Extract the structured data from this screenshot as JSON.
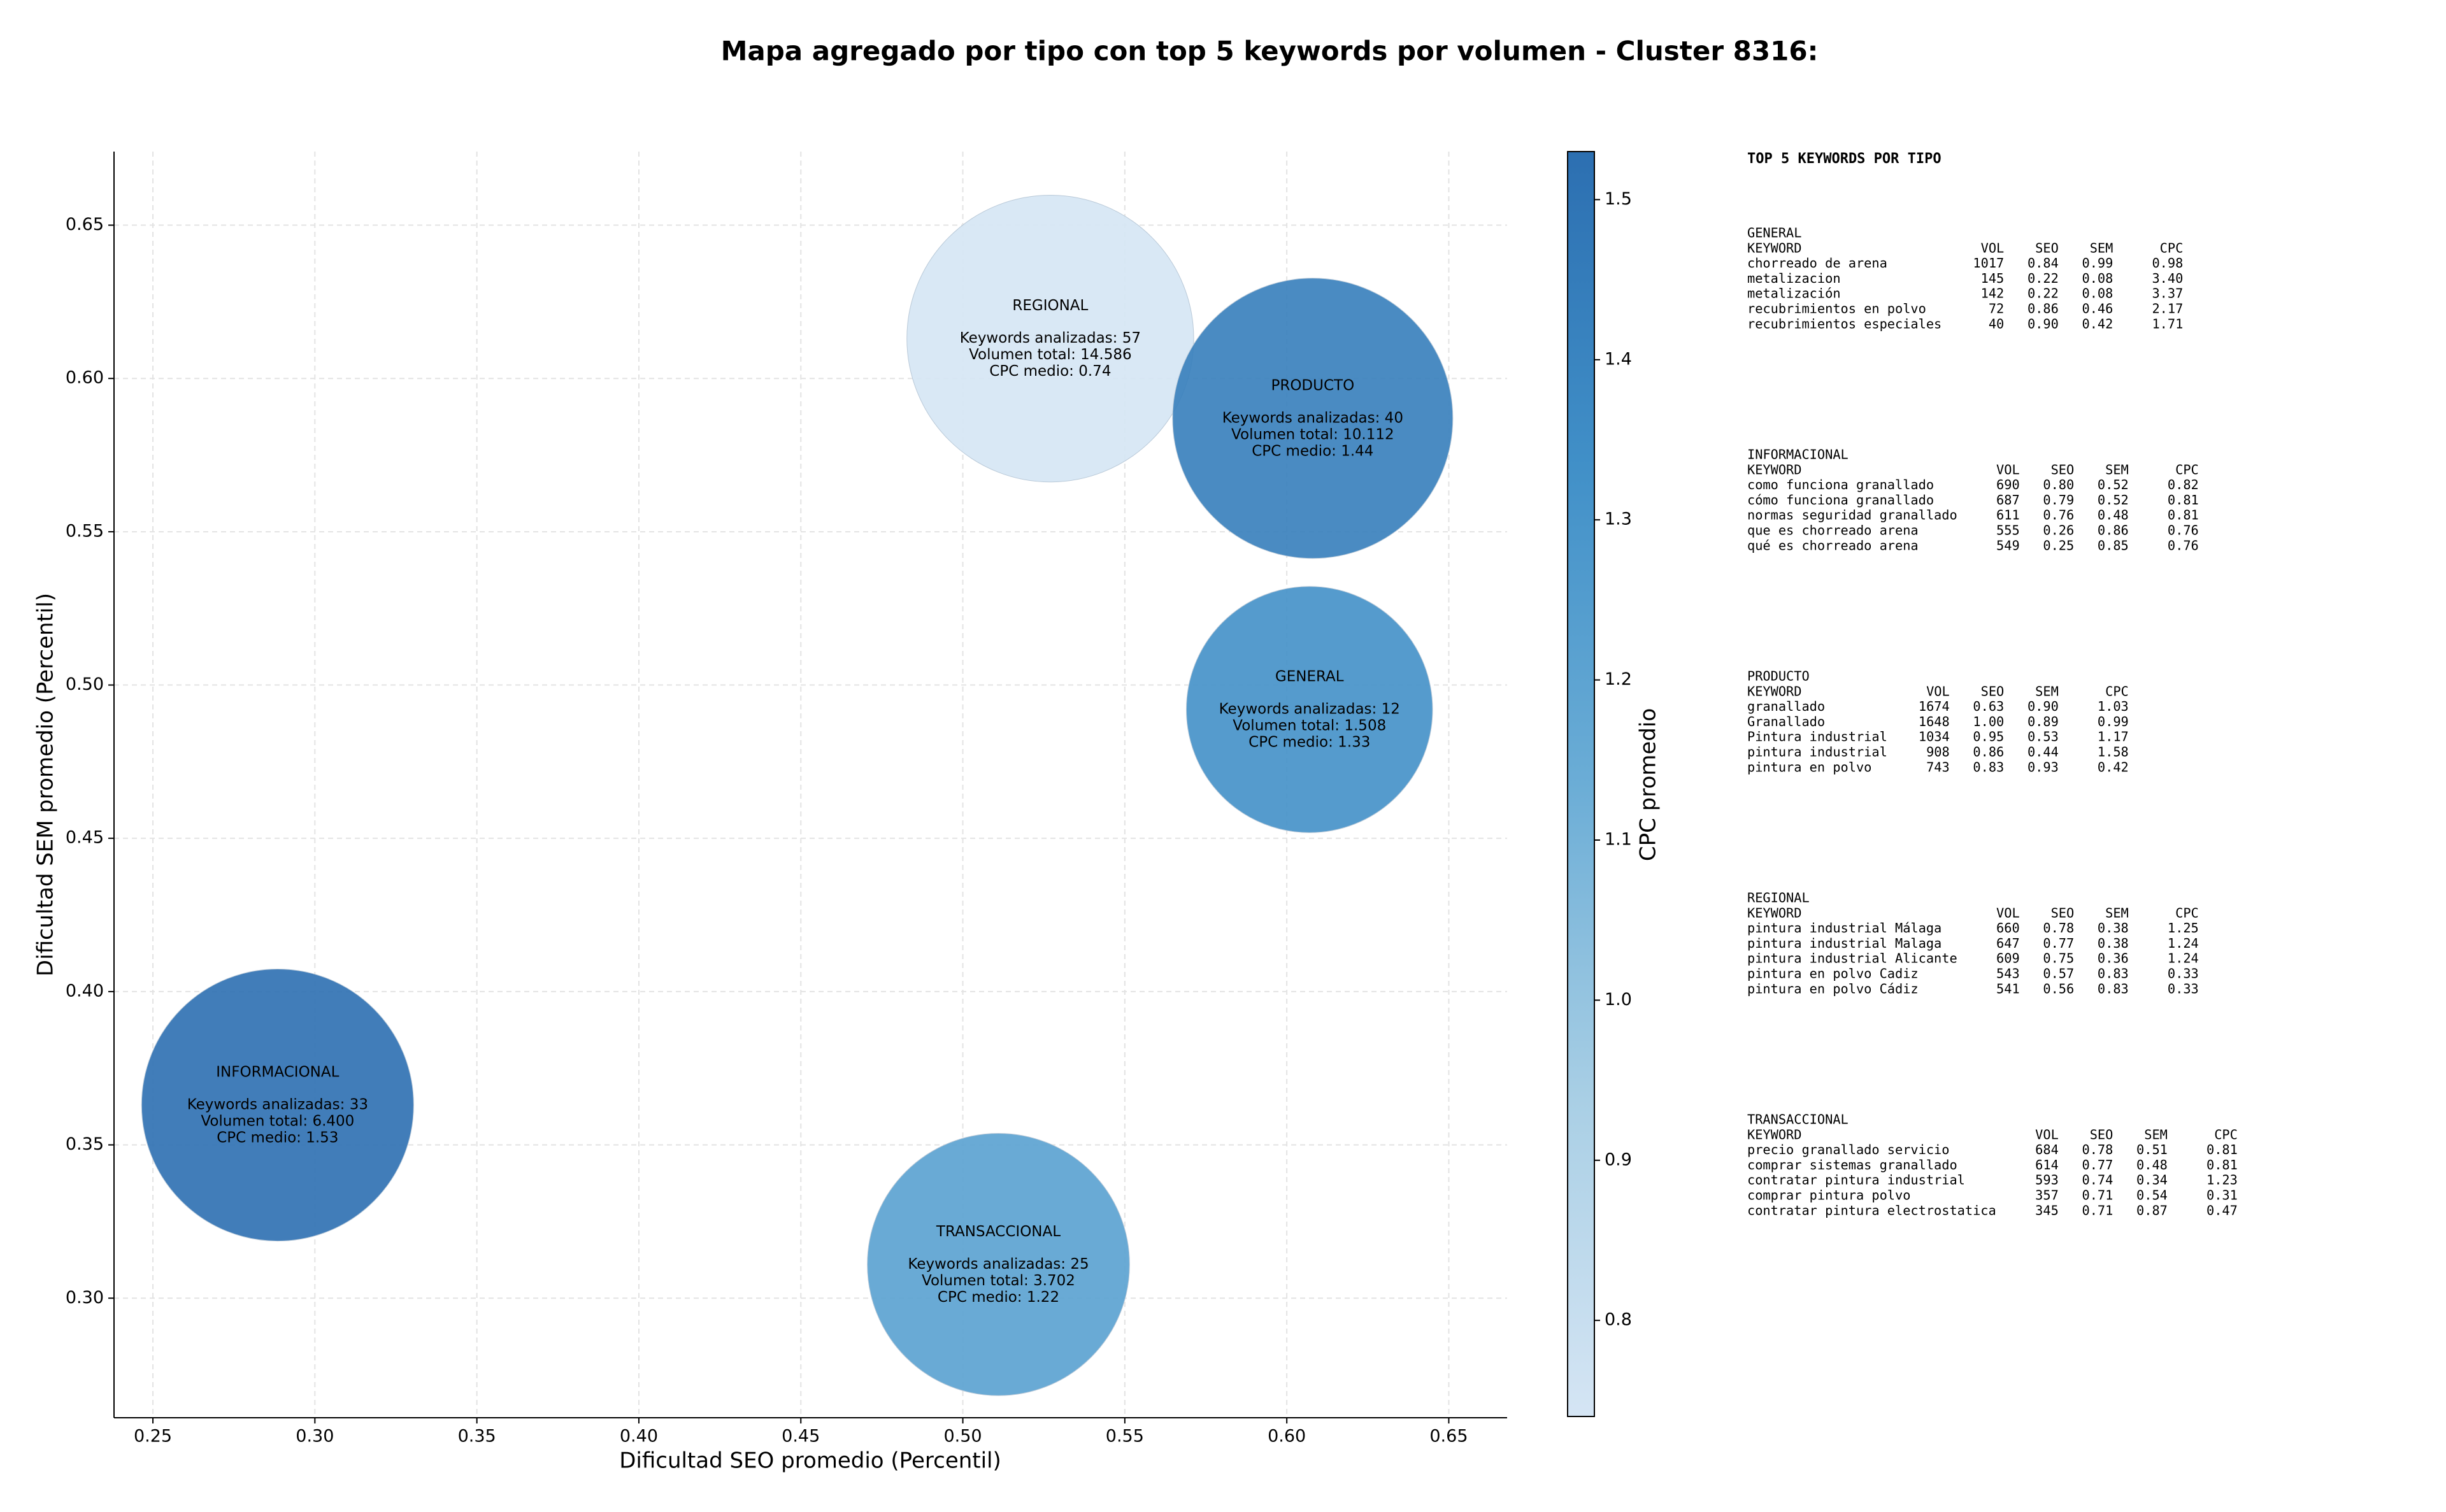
{
  "chart_data": {
    "type": "bubble",
    "title": "Mapa agregado por tipo con top 5 keywords por volumen - Cluster 8316:",
    "xlabel": "Dificultad SEO promedio (Percentil)",
    "ylabel": "Dificultad SEM promedio (Percentil)",
    "xlim": [
      0.238,
      0.668
    ],
    "ylim": [
      0.261,
      0.674
    ],
    "xticks": [
      0.25,
      {
        "value": 0.3,
        "label": "0.30"
      },
      0.35,
      {
        "value": 0.4,
        "label": "0.40"
      },
      0.45,
      {
        "value": 0.5,
        "label": "0.50"
      },
      0.55,
      {
        "value": 0.6,
        "label": "0.60"
      },
      0.65
    ],
    "yticks": [
      {
        "value": 0.3,
        "label": "0.30"
      },
      0.35,
      {
        "value": 0.4,
        "label": "0.40"
      },
      0.45,
      {
        "value": 0.5,
        "label": "0.50"
      },
      0.55,
      {
        "value": 0.6,
        "label": "0.60"
      },
      0.65
    ],
    "grid": true,
    "colorbar_label": "CPC promedio",
    "clim": [
      0.74,
      1.53
    ],
    "cticks": [
      0.8,
      0.9,
      {
        "value": 1.0,
        "label": "1.0"
      },
      1.1,
      1.2,
      1.3,
      1.4,
      1.5
    ],
    "colormap": [
      "#d5e5f4",
      "#a9cfe5",
      "#6badd6",
      "#4190c8",
      "#2c6fb1"
    ],
    "points": [
      {
        "name": "INFORMACIONAL",
        "x": 0.2885,
        "y": 0.363,
        "size": 6400,
        "color_value": 1.53,
        "labels": [
          "Keywords analizadas: 33",
          "Volumen total: 6.400",
          "CPC medio: 1.53"
        ]
      },
      {
        "name": "REGIONAL",
        "x": 0.527,
        "y": 0.613,
        "size": 14586,
        "color_value": 0.74,
        "labels": [
          "Keywords analizadas: 57",
          "Volumen total: 14.586",
          "CPC medio: 0.74"
        ]
      },
      {
        "name": "GENERAL",
        "x": 0.607,
        "y": 0.492,
        "size": 1508,
        "color_value": 1.33,
        "labels": [
          "Keywords analizadas: 12",
          "Volumen total: 1.508",
          "CPC medio: 1.33"
        ]
      },
      {
        "name": "PRODUCTO",
        "x": 0.608,
        "y": 0.587,
        "size": 10112,
        "color_value": 1.44,
        "labels": [
          "Keywords analizadas: 40",
          "Volumen total: 10.112",
          "CPC medio: 1.44"
        ]
      },
      {
        "name": "TRANSACCIONAL",
        "x": 0.511,
        "y": 0.311,
        "size": 3702,
        "color_value": 1.22,
        "labels": [
          "Keywords analizadas: 25",
          "Volumen total: 3.702",
          "CPC medio: 1.22"
        ]
      }
    ]
  },
  "keywords_panel": {
    "title": "TOP 5 KEYWORDS POR TIPO",
    "header": [
      "KEYWORD",
      "VOL",
      "SEO",
      "SEM",
      "CPC"
    ],
    "groups": [
      {
        "name": "GENERAL",
        "rows": [
          [
            "chorreado de arena",
            "1017",
            "0.84",
            "0.99",
            "0.98"
          ],
          [
            "metalizacion",
            "145",
            "0.22",
            "0.08",
            "3.40"
          ],
          [
            "metalización",
            "142",
            "0.22",
            "0.08",
            "3.37"
          ],
          [
            "recubrimientos en polvo",
            "72",
            "0.86",
            "0.46",
            "2.17"
          ],
          [
            "recubrimientos especiales",
            "40",
            "0.90",
            "0.42",
            "1.71"
          ]
        ]
      },
      {
        "name": "INFORMACIONAL",
        "rows": [
          [
            "como funciona granallado",
            "690",
            "0.80",
            "0.52",
            "0.82"
          ],
          [
            "cómo funciona granallado",
            "687",
            "0.79",
            "0.52",
            "0.81"
          ],
          [
            "normas seguridad granallado",
            "611",
            "0.76",
            "0.48",
            "0.81"
          ],
          [
            "que es chorreado arena",
            "555",
            "0.26",
            "0.86",
            "0.76"
          ],
          [
            "qué es chorreado arena",
            "549",
            "0.25",
            "0.85",
            "0.76"
          ]
        ]
      },
      {
        "name": "PRODUCTO",
        "rows": [
          [
            "granallado",
            "1674",
            "0.63",
            "0.90",
            "1.03"
          ],
          [
            "Granallado",
            "1648",
            "1.00",
            "0.89",
            "0.99"
          ],
          [
            "Pintura industrial",
            "1034",
            "0.95",
            "0.53",
            "1.17"
          ],
          [
            "pintura industrial",
            "908",
            "0.86",
            "0.44",
            "1.58"
          ],
          [
            "pintura en polvo",
            "743",
            "0.83",
            "0.93",
            "0.42"
          ]
        ]
      },
      {
        "name": "REGIONAL",
        "rows": [
          [
            "pintura industrial Málaga",
            "660",
            "0.78",
            "0.38",
            "1.25"
          ],
          [
            "pintura industrial Malaga",
            "647",
            "0.77",
            "0.38",
            "1.24"
          ],
          [
            "pintura industrial Alicante",
            "609",
            "0.75",
            "0.36",
            "1.24"
          ],
          [
            "pintura en polvo Cadiz",
            "543",
            "0.57",
            "0.83",
            "0.33"
          ],
          [
            "pintura en polvo Cádiz",
            "541",
            "0.56",
            "0.83",
            "0.33"
          ]
        ]
      },
      {
        "name": "TRANSACCIONAL",
        "rows": [
          [
            "precio granallado servicio",
            "684",
            "0.78",
            "0.51",
            "0.81"
          ],
          [
            "comprar sistemas granallado",
            "614",
            "0.77",
            "0.48",
            "0.81"
          ],
          [
            "contratar pintura industrial",
            "593",
            "0.74",
            "0.34",
            "1.23"
          ],
          [
            "comprar pintura polvo",
            "357",
            "0.71",
            "0.54",
            "0.31"
          ],
          [
            "contratar pintura electrostatica",
            "345",
            "0.71",
            "0.87",
            "0.47"
          ]
        ]
      }
    ]
  }
}
